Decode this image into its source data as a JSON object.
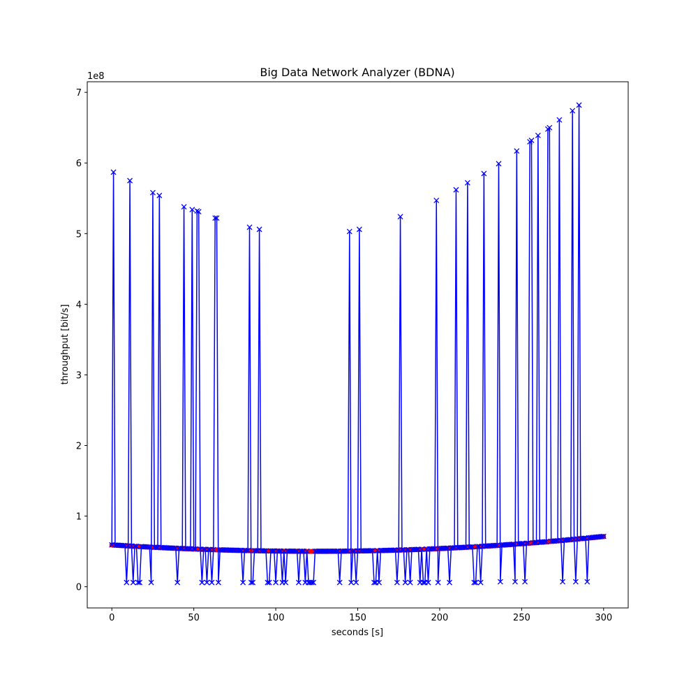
{
  "chart_data": {
    "type": "line",
    "title": "Big Data Network Analyzer (BDNA)",
    "xlabel": "seconds [s]",
    "ylabel": "throughput [bit/s]",
    "y_offset_label": "1e8",
    "xlim": [
      -15,
      315
    ],
    "ylim": [
      -30000000,
      715000000
    ],
    "x_ticks": [
      0,
      50,
      100,
      150,
      200,
      250,
      300
    ],
    "x_tick_labels": [
      "0",
      "50",
      "100",
      "150",
      "200",
      "250",
      "300"
    ],
    "y_ticks": [
      0,
      100000000,
      200000000,
      300000000,
      400000000,
      500000000,
      600000000,
      700000000
    ],
    "y_tick_labels": [
      "0",
      "1",
      "2",
      "3",
      "4",
      "5",
      "6",
      "7"
    ],
    "grid": false,
    "legend": "none",
    "colors": {
      "baseline": "#ff0000",
      "measured": "#0000ff"
    },
    "series": [
      {
        "style": "red circles, solid line",
        "x_start": 0,
        "x_end": 300,
        "x_step": 1,
        "curve": {
          "x_min": 125,
          "y_min": 50000000,
          "y_at_0": 59000000,
          "y_at_300": 71000000
        }
      },
      {
        "style": "blue x markers, solid line",
        "x_start": 0,
        "x_end": 300,
        "x_step": 1,
        "spikes": [
          [
            1,
            587000000
          ],
          [
            11,
            575000000
          ],
          [
            25,
            558000000
          ],
          [
            29,
            554000000
          ],
          [
            44,
            538000000
          ],
          [
            49,
            534000000
          ],
          [
            52,
            532000000
          ],
          [
            53,
            531000000
          ],
          [
            63,
            522000000
          ],
          [
            64,
            522000000
          ],
          [
            84,
            509000000
          ],
          [
            90,
            506000000
          ],
          [
            145,
            503000000
          ],
          [
            151,
            506000000
          ],
          [
            176,
            524000000
          ],
          [
            198,
            547000000
          ],
          [
            210,
            562000000
          ],
          [
            217,
            572000000
          ],
          [
            227,
            585000000
          ],
          [
            236,
            599000000
          ],
          [
            247,
            617000000
          ],
          [
            255,
            630000000
          ],
          [
            256,
            632000000
          ],
          [
            260,
            639000000
          ],
          [
            266,
            648000000
          ],
          [
            267,
            650000000
          ],
          [
            273,
            661000000
          ],
          [
            281,
            674000000
          ],
          [
            285,
            682000000
          ]
        ],
        "drops": [
          [
            9,
            6000000
          ],
          [
            13,
            6000000
          ],
          [
            16,
            6000000
          ],
          [
            17,
            6000000
          ],
          [
            24,
            6000000
          ],
          [
            40,
            6000000
          ],
          [
            55,
            6000000
          ],
          [
            58,
            6000000
          ],
          [
            61,
            6000000
          ],
          [
            65,
            6000000
          ],
          [
            80,
            6000000
          ],
          [
            85,
            6000000
          ],
          [
            86,
            6000000
          ],
          [
            95,
            6000000
          ],
          [
            96,
            6000000
          ],
          [
            100,
            6000000
          ],
          [
            104,
            6000000
          ],
          [
            106,
            6000000
          ],
          [
            114,
            6000000
          ],
          [
            118,
            6000000
          ],
          [
            120,
            6000000
          ],
          [
            121,
            6000000
          ],
          [
            122,
            6000000
          ],
          [
            123,
            6000000
          ],
          [
            139,
            6000000
          ],
          [
            146,
            6000000
          ],
          [
            149,
            6000000
          ],
          [
            160,
            6000000
          ],
          [
            161,
            6000000
          ],
          [
            163,
            6000000
          ],
          [
            174,
            6000000
          ],
          [
            179,
            6000000
          ],
          [
            182,
            6000000
          ],
          [
            188,
            6000000
          ],
          [
            190,
            6000000
          ],
          [
            191,
            6000000
          ],
          [
            193,
            6000000
          ],
          [
            199,
            6000000
          ],
          [
            206,
            6000000
          ],
          [
            210,
            6000000
          ],
          [
            221,
            6000000
          ],
          [
            222,
            6000000
          ],
          [
            225,
            6000000
          ],
          [
            237,
            7000000
          ],
          [
            246,
            7000000
          ],
          [
            252,
            7000000
          ],
          [
            275,
            7000000
          ],
          [
            283,
            7000000
          ],
          [
            290,
            7000000
          ]
        ]
      }
    ]
  }
}
